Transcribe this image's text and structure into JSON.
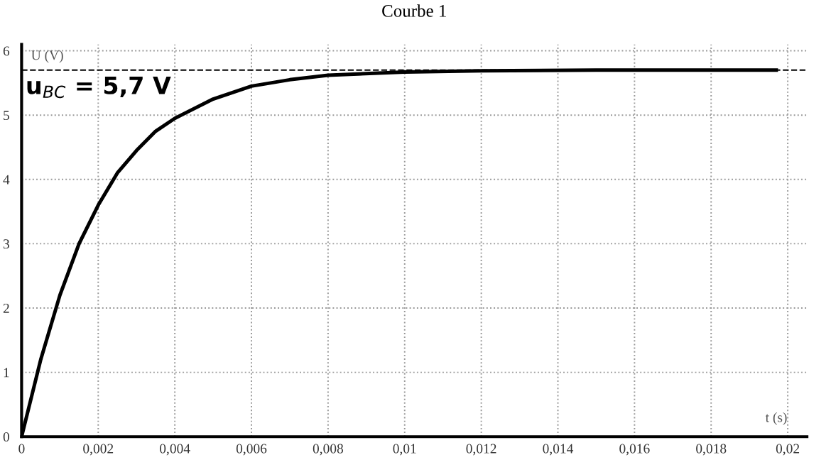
{
  "chart_data": {
    "type": "line",
    "title": "Courbe 1",
    "xlabel": "t (s)",
    "ylabel": "U (V)",
    "x": [
      0,
      0.0005,
      0.001,
      0.0015,
      0.002,
      0.0025,
      0.003,
      0.0035,
      0.004,
      0.005,
      0.006,
      0.007,
      0.008,
      0.01,
      0.012,
      0.015,
      0.0197
    ],
    "series": [
      {
        "color": "#000000",
        "values": [
          0,
          1.2,
          2.2,
          3.0,
          3.6,
          4.1,
          4.45,
          4.75,
          4.95,
          5.25,
          5.45,
          5.55,
          5.62,
          5.67,
          5.69,
          5.7,
          5.7
        ]
      }
    ],
    "xlim": [
      0,
      0.0205
    ],
    "ylim": [
      0,
      6.1
    ],
    "xticks": [
      0,
      {
        "value": 0.002,
        "label": "0,002"
      },
      {
        "value": 0.004,
        "label": "0,004"
      },
      {
        "value": 0.006,
        "label": "0,006"
      },
      {
        "value": 0.008,
        "label": "0,008"
      },
      {
        "value": 0.01,
        "label": "0,01"
      },
      {
        "value": 0.012,
        "label": "0,012"
      },
      {
        "value": 0.014,
        "label": "0,014"
      },
      {
        "value": 0.016,
        "label": "0,016"
      },
      {
        "value": 0.018,
        "label": "0,018"
      },
      {
        "value": 0.02,
        "label": "0,02"
      }
    ],
    "yticks": [
      0,
      1,
      2,
      3,
      4,
      5,
      6
    ],
    "ref_lines": [
      {
        "axis": "y",
        "value": 5.7,
        "label": "u$_{BC}$ = 5,7 V",
        "color": "#000000",
        "line_style": "dashed"
      }
    ],
    "grid": true,
    "marker": "none",
    "line_style": "solid"
  }
}
